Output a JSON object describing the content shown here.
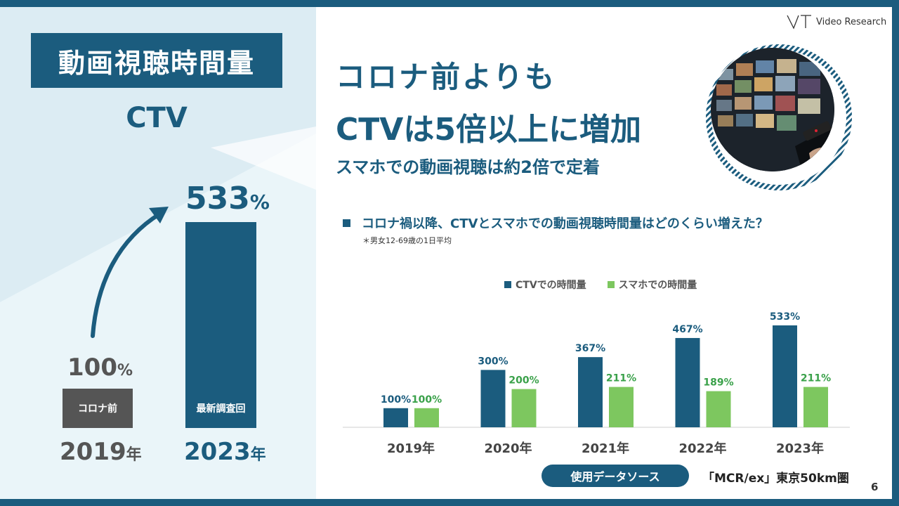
{
  "left_panel": {
    "title": "動画視聴時間量",
    "subtitle": "CTV",
    "before": {
      "value": "100",
      "unit": "%",
      "bar_label": "コロナ前",
      "year": "2019",
      "year_suffix": "年"
    },
    "after": {
      "value": "533",
      "unit": "%",
      "bar_label": "最新調査回",
      "year": "2023",
      "year_suffix": "年"
    }
  },
  "headline": {
    "line1": "コロナ前よりも",
    "line2": "CTVは5倍以上に増加",
    "sub": "スマホでの動画視聴は約2倍で定着"
  },
  "logo": {
    "text": "Video Research"
  },
  "question": {
    "title": "コロナ禍以降、CTVとスマホでの動画視聴時間量はどのくらい増えた？",
    "note": "＊男女12-69歳の1日平均"
  },
  "colors": {
    "ctv": "#1b5c7e",
    "phone": "#7dc75f",
    "phone_label": "#3aa14a"
  },
  "chart_data": {
    "type": "bar",
    "categories": [
      "2019年",
      "2020年",
      "2021年",
      "2022年",
      "2023年"
    ],
    "series": [
      {
        "name": "CTVでの時間量",
        "values": [
          100,
          300,
          367,
          467,
          533
        ],
        "labels": [
          "100%",
          "300%",
          "367%",
          "467%",
          "533%"
        ]
      },
      {
        "name": "スマホでの時間量",
        "values": [
          100,
          200,
          211,
          189,
          211
        ],
        "labels": [
          "100%",
          "200%",
          "211%",
          "189%",
          "211%"
        ]
      }
    ],
    "legend_position": "top"
  },
  "source": {
    "label": "使用データソース",
    "text": "「MCR/ex」東京50km圏"
  },
  "page_number": "6"
}
